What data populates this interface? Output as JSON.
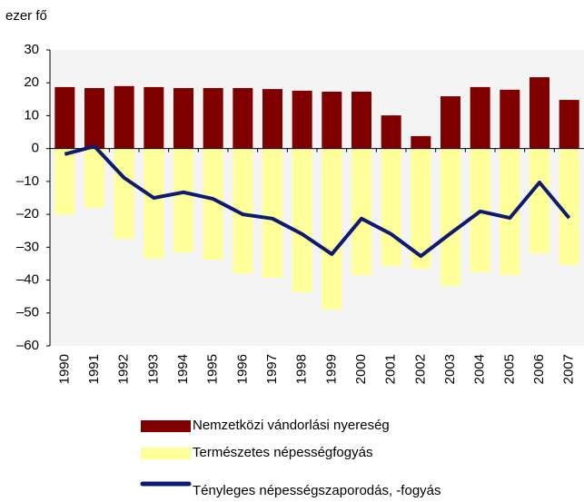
{
  "chart_data": {
    "type": "bar",
    "y_axis_label": "ezer fő",
    "categories": [
      "1990",
      "1991",
      "1992",
      "1993",
      "1994",
      "1995",
      "1996",
      "1997",
      "1998",
      "1999",
      "2000",
      "2001",
      "2002",
      "2003",
      "2004",
      "2005",
      "2006",
      "2007"
    ],
    "series": [
      {
        "name": "Nemzetközi vándorlási nyereség",
        "type": "bar",
        "color": "#800000",
        "values": [
          18.7,
          18.4,
          19,
          18.7,
          18.4,
          18.4,
          18.4,
          18.1,
          17.6,
          17.3,
          17.3,
          10.1,
          3.8,
          15.9,
          18.7,
          17.9,
          21.7,
          14.8
        ]
      },
      {
        "name": "Természetes népességfogyás",
        "type": "bar",
        "color": "#ffff99",
        "values": [
          -20.2,
          -18,
          -27.4,
          -33.5,
          -31.6,
          -33.8,
          -38,
          -39.3,
          -43.7,
          -49,
          -38.5,
          -35.7,
          -36.5,
          -41.8,
          -37.6,
          -38.5,
          -31.9,
          -35.4
        ]
      },
      {
        "name": "Tényleges népességszaporodás, -fogyás",
        "type": "line",
        "color": "#0d1a72",
        "values": [
          -1.7,
          0.7,
          -8.9,
          -15,
          -13.3,
          -15.3,
          -20,
          -21.3,
          -26,
          -32.1,
          -21.3,
          -26,
          -32.7,
          -25.8,
          -19.1,
          -21.1,
          -10.3,
          -21.1
        ]
      }
    ],
    "ylim": [
      -60,
      30
    ],
    "yticks": [
      30,
      20,
      10,
      0,
      {
        "value": -10,
        "label": "–10"
      },
      {
        "value": -20,
        "label": "–20"
      },
      {
        "value": -30,
        "label": "–30"
      },
      {
        "value": -40,
        "label": "–40"
      },
      {
        "value": -50,
        "label": "–50"
      },
      {
        "value": -60,
        "label": "–60"
      }
    ]
  }
}
